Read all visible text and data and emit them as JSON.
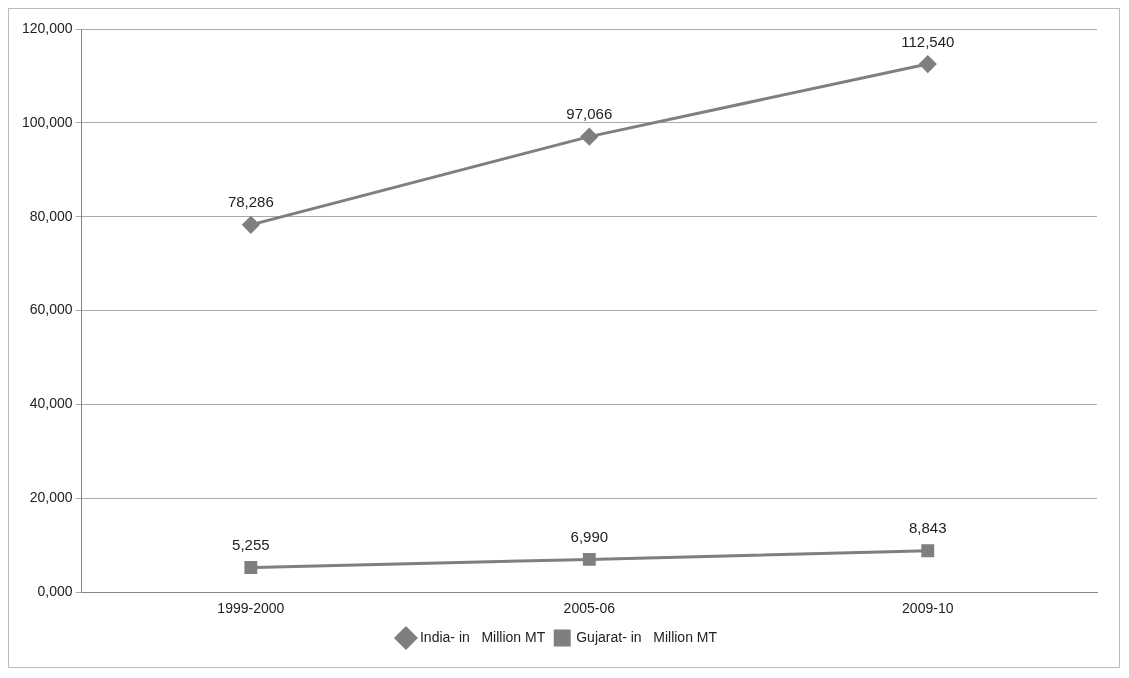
{
  "chart_data": {
    "type": "line",
    "categories": [
      "1999-2000",
      "2005-06",
      "2009-10"
    ],
    "series": [
      {
        "name": "India- in   Million MT",
        "color": "#7f7f7f",
        "marker": "diamond",
        "values": [
          78286,
          97066,
          112540
        ],
        "value_labels": [
          "78,286",
          "97,066",
          "112,540"
        ]
      },
      {
        "name": "Gujarat- in   Million MT",
        "color": "#7f7f7f",
        "marker": "square",
        "values": [
          5255,
          6990,
          8843
        ],
        "value_labels": [
          "5,255",
          "6,990",
          "8,843"
        ]
      }
    ],
    "ylim": [
      0,
      120000
    ],
    "yticks": [
      {
        "value": 0,
        "label": "0,000"
      },
      {
        "value": 20000,
        "label": "20,000"
      },
      {
        "value": 40000,
        "label": "40,000"
      },
      {
        "value": 60000,
        "label": "60,000"
      },
      {
        "value": 80000,
        "label": "80,000"
      },
      {
        "value": 100000,
        "label": "100,000"
      },
      {
        "value": 120000,
        "label": "120,000"
      }
    ],
    "grid": "y",
    "legend": "bottom",
    "line_style": "solid"
  }
}
